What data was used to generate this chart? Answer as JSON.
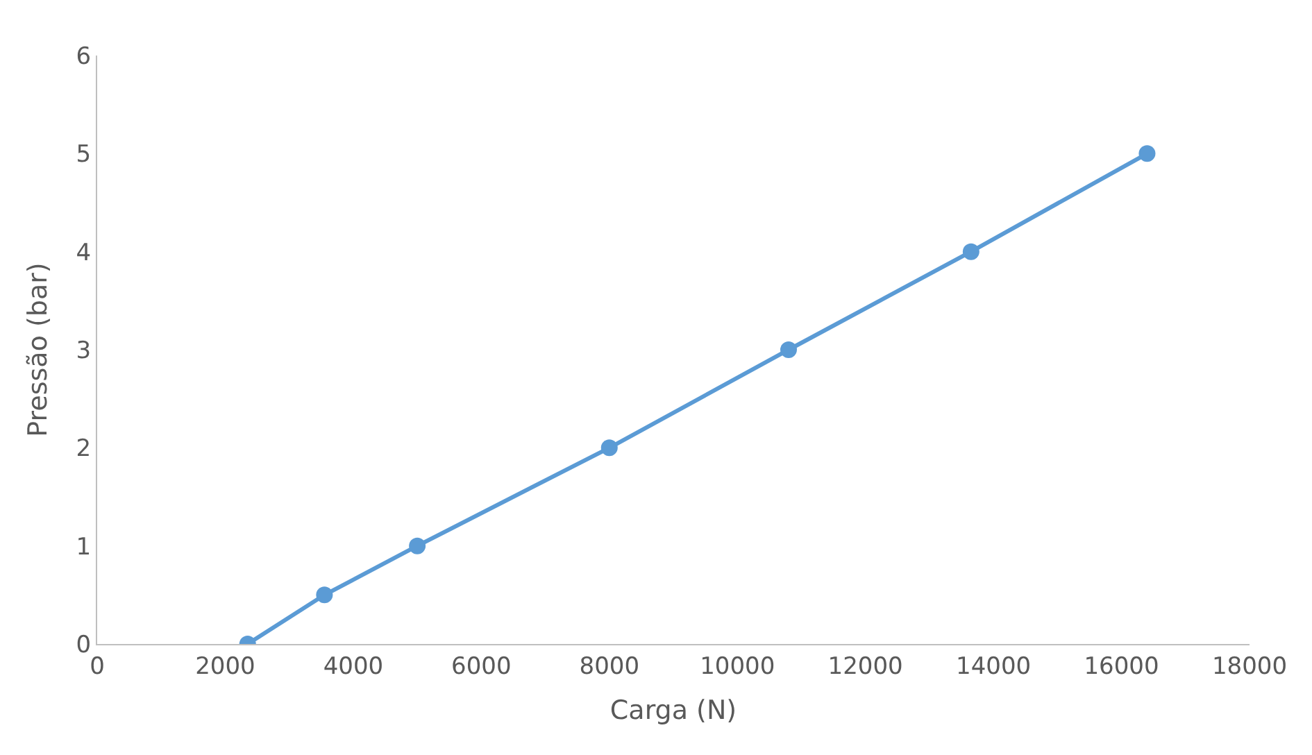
{
  "chart_data": {
    "type": "line",
    "xlabel": "Carga (N)",
    "ylabel": "Pressão (bar)",
    "x": [
      2350,
      3550,
      5000,
      8000,
      10800,
      13650,
      16400
    ],
    "series": [
      {
        "color": "#5b9bd5",
        "values": [
          0,
          0.5,
          1,
          2,
          3,
          4,
          5
        ]
      }
    ],
    "xlim": [
      0,
      18000
    ],
    "xticks": [
      0,
      2000,
      4000,
      6000,
      8000,
      10000,
      12000,
      14000,
      16000,
      18000
    ],
    "ylim": [
      0,
      6
    ],
    "yticks": [
      0,
      1,
      2,
      3,
      4,
      5,
      6
    ],
    "grid": false,
    "marker": "circle",
    "line_style": "solid"
  }
}
